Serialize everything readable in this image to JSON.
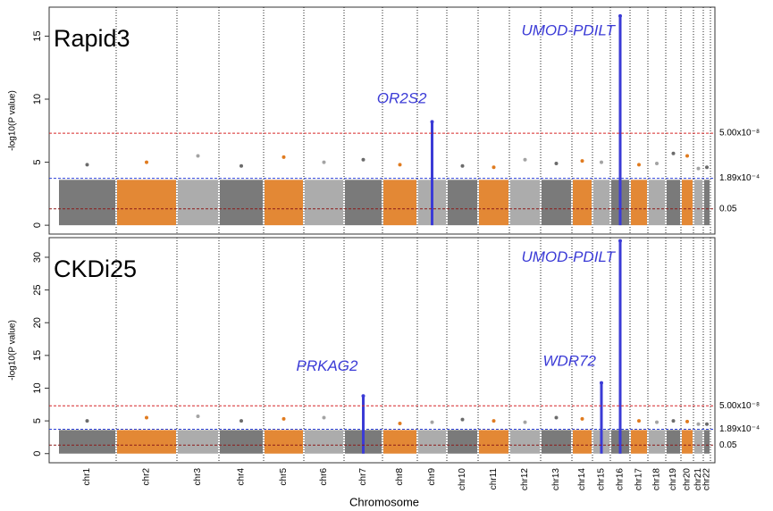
{
  "chart_data": {
    "type": "manhattan",
    "xlabel": "Chromosome",
    "ylabel": "-log10(P value)",
    "categories": [
      "chr1",
      "chr2",
      "chr3",
      "chr4",
      "chr5",
      "chr6",
      "chr7",
      "chr8",
      "chr9",
      "chr10",
      "chr11",
      "chr12",
      "chr13",
      "chr14",
      "chr15",
      "chr16",
      "chr17",
      "chr18",
      "chr19",
      "chr20",
      "chr21",
      "chr22"
    ],
    "colors": [
      "#6b6b6b",
      "#e07b1f",
      "#a3a3a3"
    ],
    "highlight_color": "#3b3bd6",
    "panels": [
      {
        "title": "Rapid3",
        "ylim": [
          -0.7,
          17.3
        ],
        "yticks": [
          0,
          5,
          10,
          15
        ],
        "bulk_top": 3.6,
        "values": [
          4.8,
          5.0,
          5.5,
          4.7,
          5.4,
          5.0,
          5.2,
          4.8,
          8.2,
          4.7,
          4.6,
          5.2,
          4.9,
          5.1,
          5.0,
          16.6,
          4.8,
          4.9,
          5.7,
          5.5,
          4.5,
          4.6
        ],
        "thresholds": [
          {
            "value": 7.301,
            "label": "5.00x10⁻⁸",
            "color": "#d62728"
          },
          {
            "value": 3.724,
            "label": "1.89x10⁻⁴",
            "color": "#2b3fd6"
          },
          {
            "value": 1.301,
            "label": "0.05",
            "color": "#8b1a1a"
          }
        ],
        "annotations": [
          {
            "text": "OR2S2",
            "category_index": 8,
            "value": 10.0
          },
          {
            "text": "UMOD-PDILT",
            "category_index": 15,
            "value": 15.4
          }
        ]
      },
      {
        "title": "CKDi25",
        "ylim": [
          -1.4,
          33.0
        ],
        "yticks": [
          0,
          5,
          10,
          15,
          20,
          25,
          30
        ],
        "bulk_top": 3.6,
        "values": [
          5.0,
          5.5,
          5.7,
          5.0,
          5.3,
          5.5,
          8.8,
          4.6,
          4.8,
          5.2,
          5.0,
          4.8,
          5.5,
          5.3,
          10.8,
          32.5,
          5.0,
          4.8,
          5.0,
          4.9,
          4.5,
          4.5
        ],
        "thresholds": [
          {
            "value": 7.301,
            "label": "5.00x10⁻⁸",
            "color": "#d62728"
          },
          {
            "value": 3.724,
            "label": "1.89x10⁻⁴",
            "color": "#2b3fd6"
          },
          {
            "value": 1.301,
            "label": "0.05",
            "color": "#8b1a1a"
          }
        ],
        "annotations": [
          {
            "text": "PRKAG2",
            "category_index": 6,
            "value": 13.3
          },
          {
            "text": "WDR72",
            "category_index": 14,
            "value": 14.0
          },
          {
            "text": "UMOD-PDILT",
            "category_index": 15,
            "value": 29.9
          }
        ]
      }
    ]
  }
}
